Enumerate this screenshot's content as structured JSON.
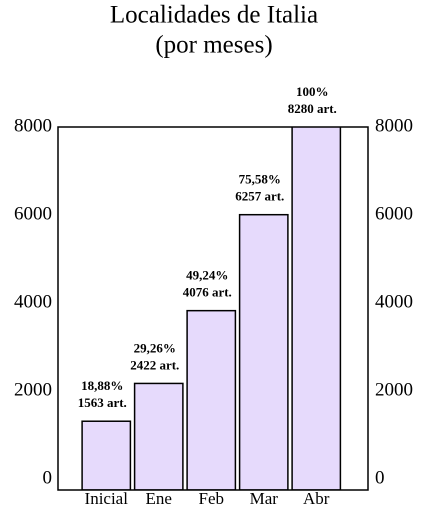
{
  "chart_data": {
    "type": "bar",
    "title": "Localidades de Italia",
    "subtitle": "(por meses)",
    "categories": [
      "Inicial",
      "Ene",
      "Feb",
      "Mar",
      "Abr"
    ],
    "values": [
      1563,
      2422,
      4076,
      6257,
      8280
    ],
    "value_labels": [
      "1563 art.",
      "2422 art.",
      "4076 art.",
      "6257 art.",
      "8280 art."
    ],
    "percent_labels": [
      "18,88%",
      "29,26%",
      "49,24%",
      "75,58%",
      "100%"
    ],
    "color": "#e6dafc",
    "ylim": [
      0,
      8250
    ],
    "yticks": [
      0,
      2000,
      4000,
      6000,
      8000
    ],
    "y2ticks": [
      0,
      2000,
      4000,
      6000,
      8000
    ]
  }
}
